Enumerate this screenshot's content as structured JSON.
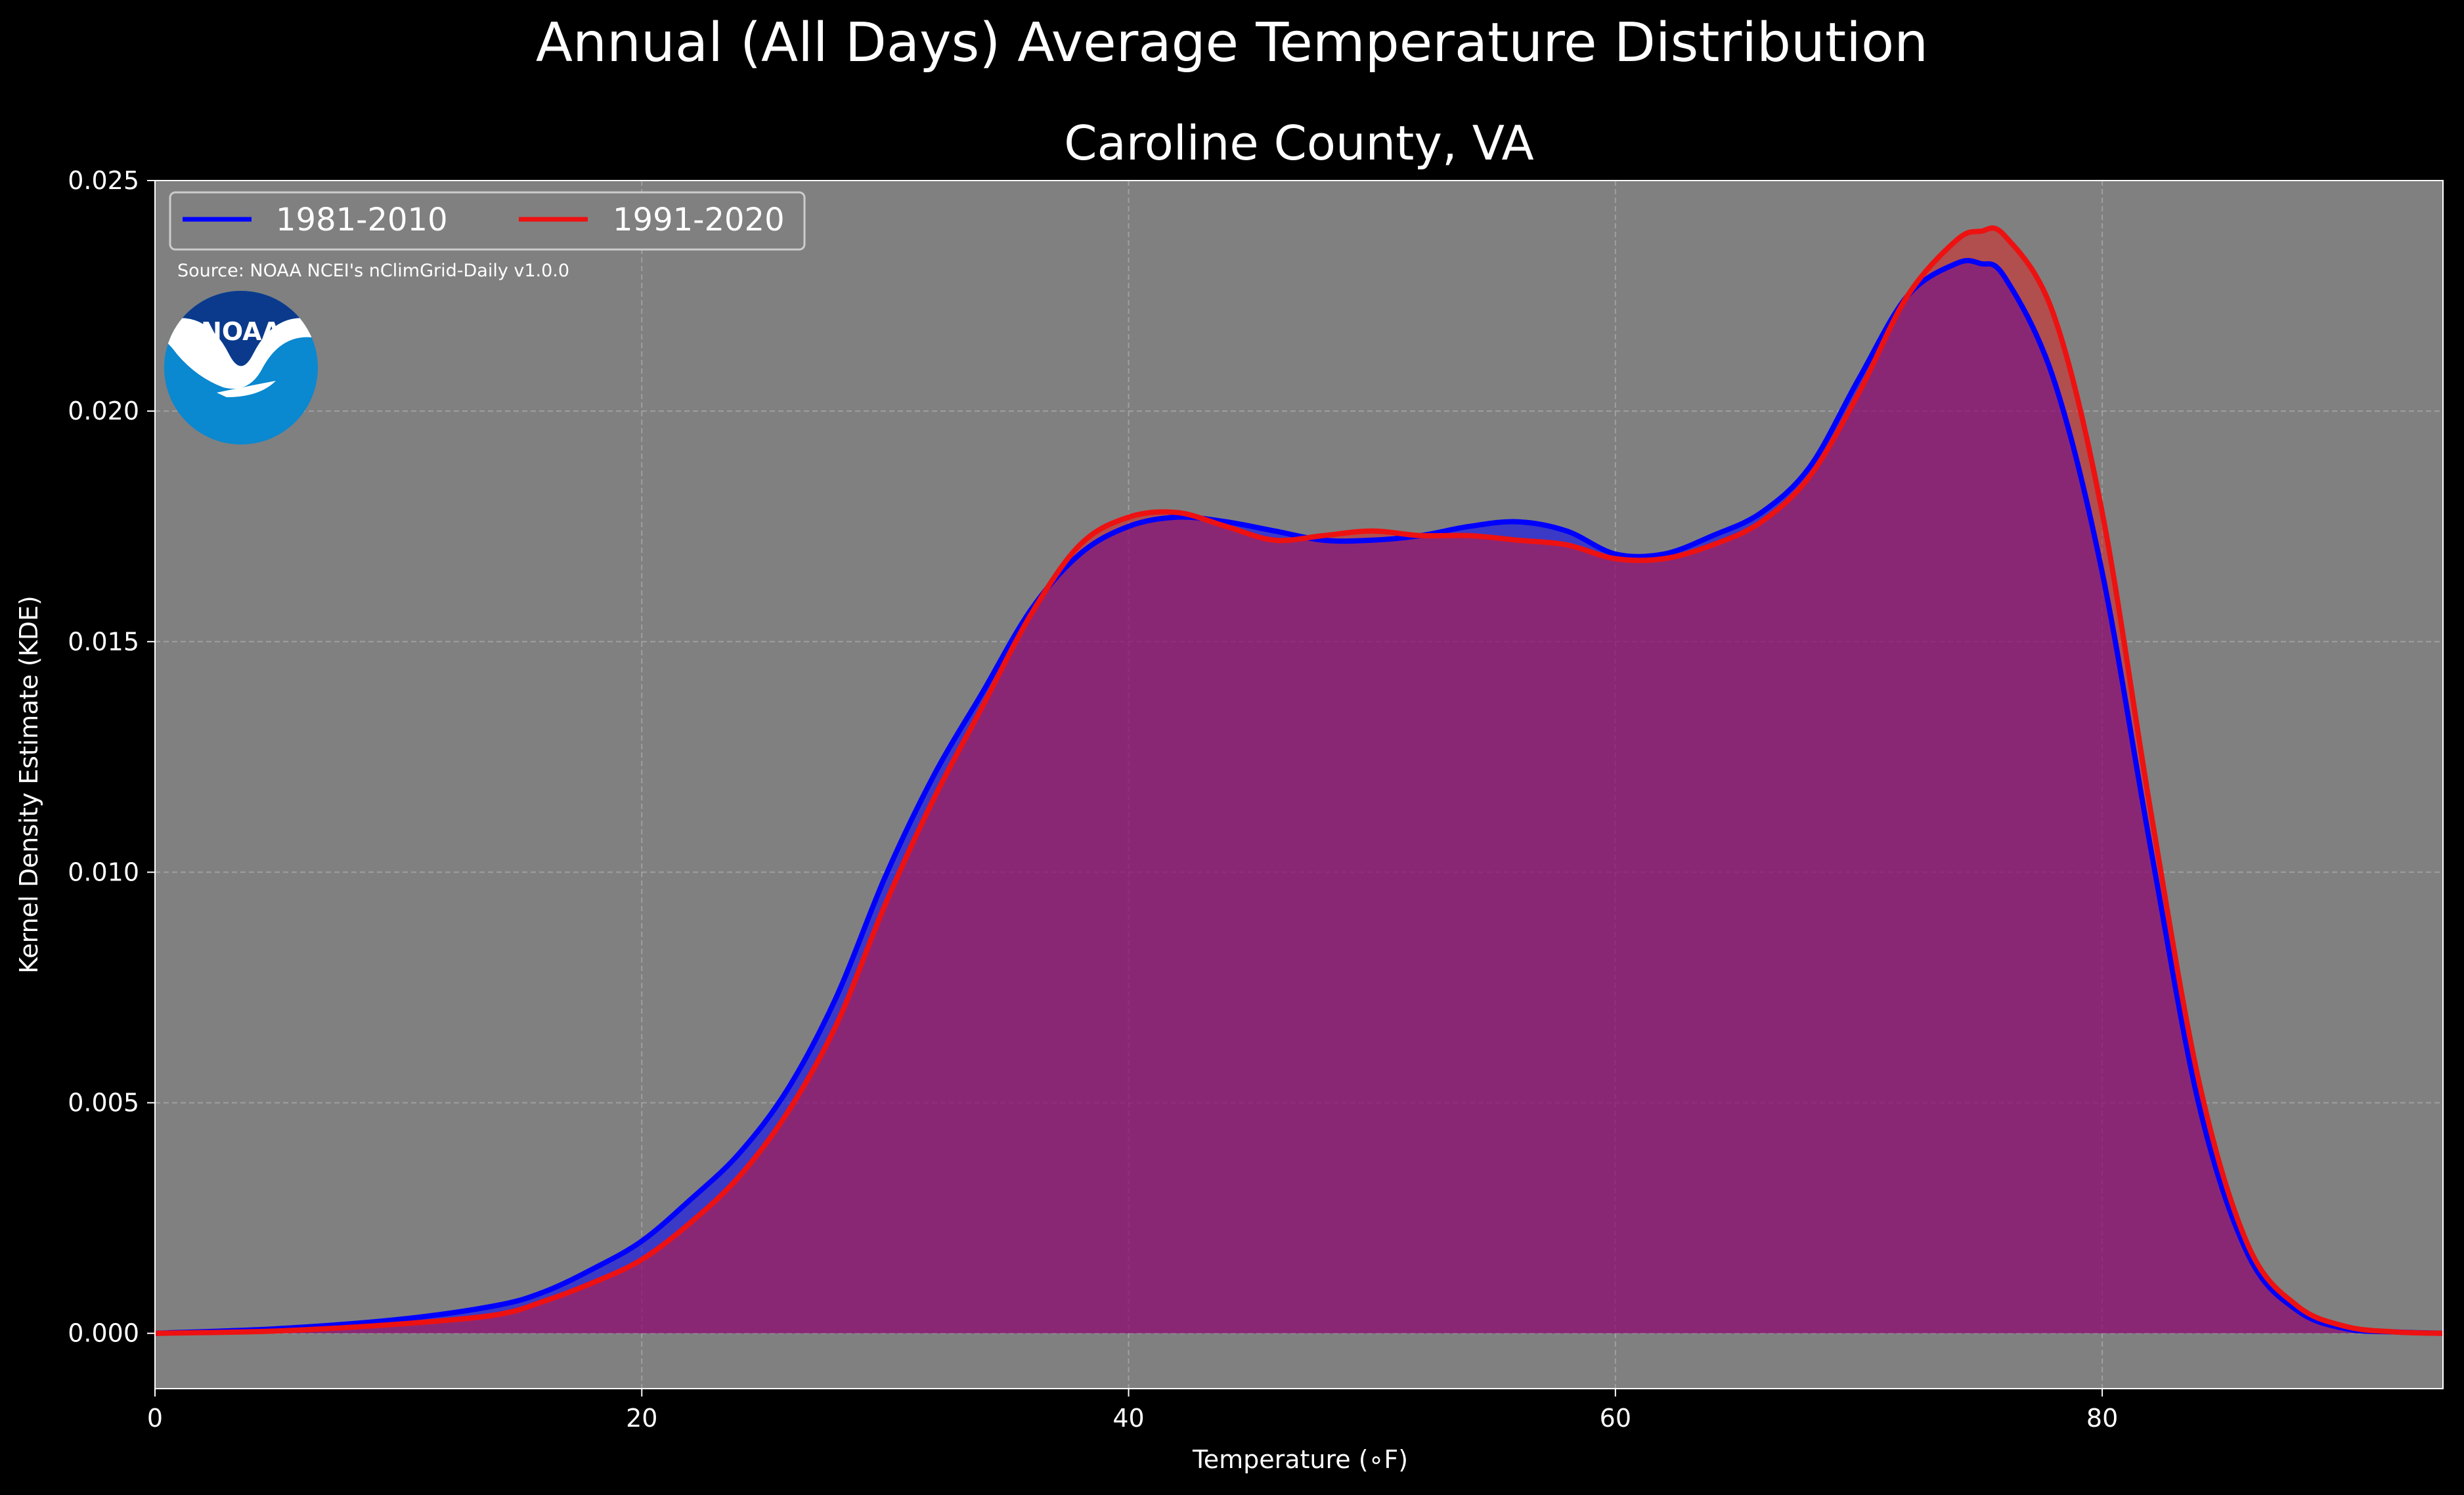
{
  "colors": {
    "background": "#000000",
    "plot_background": "#808080",
    "series_1981": "#0000ff",
    "series_1991": "#ee1111",
    "grid": "#b4b4b4",
    "text": "#ffffff",
    "noaa_dark": "#0b3a8c",
    "noaa_light": "#0a88d0"
  },
  "source_note": "Source: NOAA NCEI's nClimGrid-Daily v1.0.0",
  "logo": {
    "text": "NOAA",
    "icon": "noaa-logo"
  },
  "chart_data": {
    "type": "area",
    "title": "Annual (All Days) Average Temperature Distribution",
    "subtitle": "Caroline County, VA",
    "xlabel": "Temperature (∘F)",
    "ylabel": "Kernel Density Estimate (KDE)",
    "xlim": [
      0,
      94
    ],
    "ylim": [
      -0.0012,
      0.025
    ],
    "xticks": [
      0,
      20,
      40,
      60,
      80
    ],
    "xtick_labels": [
      "0",
      "20",
      "40",
      "60",
      "80"
    ],
    "yticks": [
      0.0,
      0.005,
      0.01,
      0.015,
      0.02,
      0.025
    ],
    "ytick_labels": [
      "0.000",
      "0.005",
      "0.010",
      "0.015",
      "0.020",
      "0.025"
    ],
    "grid": true,
    "legend_position": "top-left",
    "series": [
      {
        "name": "1981-2010",
        "x": [
          0,
          5,
          10,
          14,
          16,
          18,
          20,
          22,
          24,
          26,
          28,
          30,
          32,
          34,
          36,
          38,
          40,
          42,
          44,
          46,
          48,
          50,
          52,
          54,
          56,
          58,
          60,
          62,
          64,
          66,
          68,
          70,
          72,
          74,
          75,
          76,
          78,
          80,
          82,
          84,
          86,
          88,
          90,
          92,
          94
        ],
        "values": [
          0.0,
          0.0001,
          0.0003,
          0.0006,
          0.0009,
          0.0014,
          0.002,
          0.0029,
          0.0039,
          0.0053,
          0.0073,
          0.0099,
          0.0121,
          0.0139,
          0.0157,
          0.0169,
          0.0175,
          0.0177,
          0.0176,
          0.0174,
          0.0172,
          0.0172,
          0.0173,
          0.0175,
          0.0176,
          0.0174,
          0.0169,
          0.0169,
          0.0173,
          0.0178,
          0.0188,
          0.0207,
          0.0225,
          0.0232,
          0.0232,
          0.0229,
          0.0207,
          0.0165,
          0.0105,
          0.0049,
          0.0017,
          0.0005,
          0.0001,
          3e-05,
          0.0
        ]
      },
      {
        "name": "1991-2020",
        "x": [
          0,
          5,
          10,
          14,
          16,
          18,
          20,
          22,
          24,
          26,
          28,
          30,
          32,
          34,
          36,
          38,
          40,
          42,
          44,
          46,
          48,
          50,
          52,
          54,
          56,
          58,
          60,
          62,
          64,
          66,
          68,
          70,
          72,
          74,
          75,
          76,
          78,
          80,
          82,
          84,
          86,
          88,
          90,
          92,
          94
        ],
        "values": [
          0.0,
          5e-05,
          0.0002,
          0.0004,
          0.0007,
          0.0011,
          0.0016,
          0.0024,
          0.0034,
          0.0048,
          0.0067,
          0.0093,
          0.0116,
          0.0136,
          0.0156,
          0.0171,
          0.0177,
          0.0178,
          0.0175,
          0.0172,
          0.0173,
          0.0174,
          0.0173,
          0.0173,
          0.0172,
          0.0171,
          0.0168,
          0.0168,
          0.0171,
          0.0176,
          0.0186,
          0.0204,
          0.0225,
          0.0237,
          0.0239,
          0.0238,
          0.0221,
          0.0178,
          0.0113,
          0.0054,
          0.0019,
          0.0006,
          0.00015,
          3e-05,
          0.0
        ]
      }
    ]
  }
}
